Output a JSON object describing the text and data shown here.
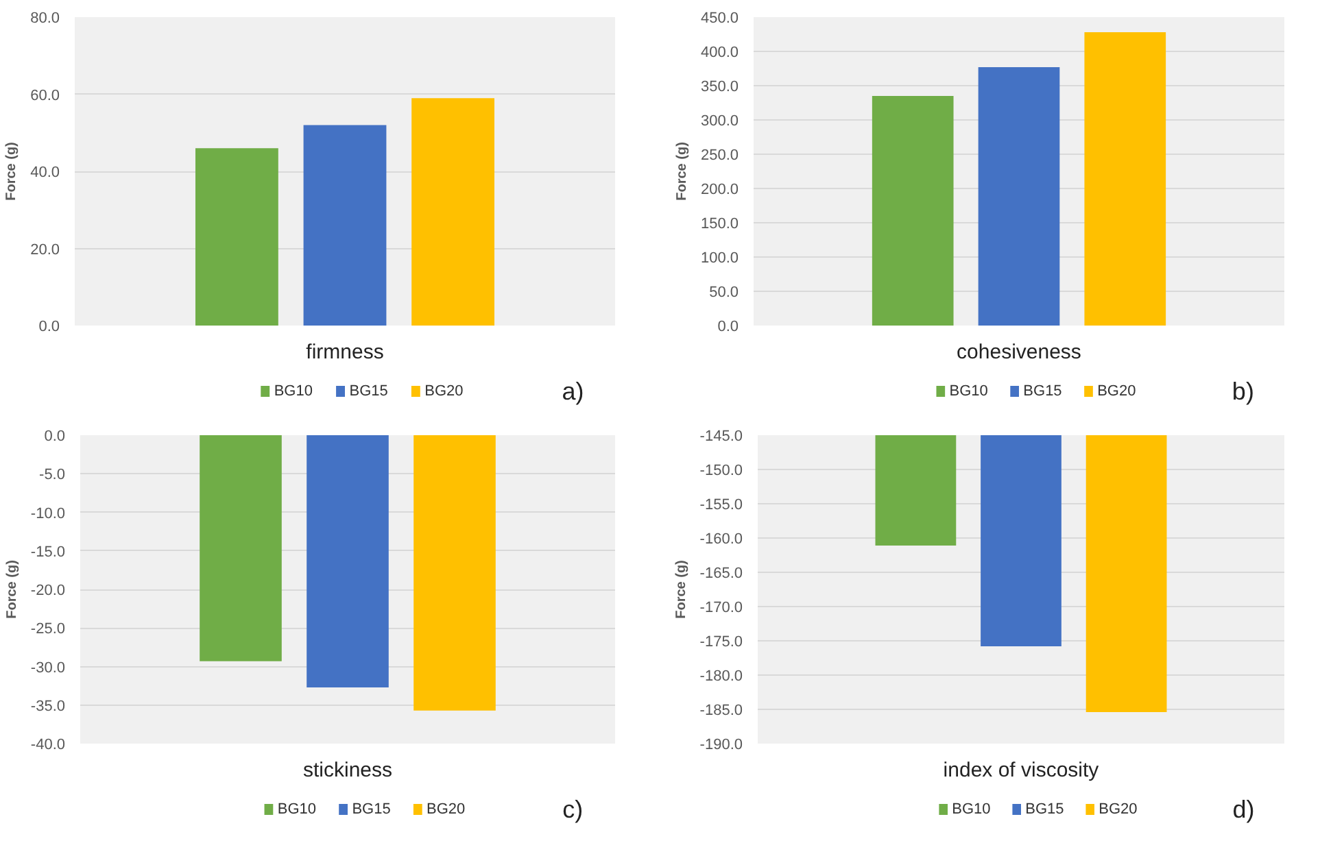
{
  "chart_data": [
    {
      "type": "bar",
      "categories": [
        "firmness"
      ],
      "ylabel": "Force (g)",
      "series": [
        {
          "name": "BG10",
          "color": "#70ad47",
          "values": [
            46
          ]
        },
        {
          "name": "BG15",
          "color": "#4472c4",
          "values": [
            52
          ]
        },
        {
          "name": "BG20",
          "color": "#ffc000",
          "values": [
            59
          ]
        }
      ],
      "ylim": [
        0,
        80
      ],
      "yticks": [
        {
          "value": 0,
          "label": "0.0"
        },
        {
          "value": 20,
          "label": "20.0"
        },
        {
          "value": 40,
          "label": "40.0"
        },
        {
          "value": 60,
          "label": "60.0"
        },
        {
          "value": 80,
          "label": "80.0"
        }
      ],
      "grid": "y",
      "legend": "bottom",
      "annotations": [
        "a)"
      ]
    },
    {
      "type": "bar",
      "categories": [
        "cohesiveness"
      ],
      "ylabel": "Force (g)",
      "series": [
        {
          "name": "BG10",
          "color": "#70ad47",
          "values": [
            335
          ]
        },
        {
          "name": "BG15",
          "color": "#4472c4",
          "values": [
            377
          ]
        },
        {
          "name": "BG20",
          "color": "#ffc000",
          "values": [
            428
          ]
        }
      ],
      "ylim": [
        0,
        450
      ],
      "yticks": [
        {
          "value": 0,
          "label": "0.0"
        },
        {
          "value": 50,
          "label": "50.0"
        },
        {
          "value": 100,
          "label": "100.0"
        },
        {
          "value": 150,
          "label": "150.0"
        },
        {
          "value": 200,
          "label": "200.0"
        },
        {
          "value": 250,
          "label": "250.0"
        },
        {
          "value": 300,
          "label": "300.0"
        },
        {
          "value": 350,
          "label": "350.0"
        },
        {
          "value": 400,
          "label": "400.0"
        },
        {
          "value": 450,
          "label": "450.0"
        }
      ],
      "grid": "y",
      "legend": "bottom",
      "annotations": [
        "b)"
      ]
    },
    {
      "type": "bar",
      "categories": [
        "stickiness"
      ],
      "ylabel": "Force (g)",
      "series": [
        {
          "name": "BG10",
          "color": "#70ad47",
          "values": [
            -29.3
          ]
        },
        {
          "name": "BG15",
          "color": "#4472c4",
          "values": [
            -32.7
          ]
        },
        {
          "name": "BG20",
          "color": "#ffc000",
          "values": [
            -35.7
          ]
        }
      ],
      "ylim": [
        -40,
        0
      ],
      "yticks": [
        {
          "value": 0,
          "label": "0.0"
        },
        {
          "value": -5,
          "label": "-5.0"
        },
        {
          "value": -10,
          "label": "-10.0"
        },
        {
          "value": -15,
          "label": "-15.0"
        },
        {
          "value": -20,
          "label": "-20.0"
        },
        {
          "value": -25,
          "label": "-25.0"
        },
        {
          "value": -30,
          "label": "-30.0"
        },
        {
          "value": -35,
          "label": "-35.0"
        },
        {
          "value": -40,
          "label": "-40.0"
        }
      ],
      "grid": "y",
      "legend": "bottom",
      "annotations": [
        "c)"
      ]
    },
    {
      "type": "bar",
      "categories": [
        "index of viscosity"
      ],
      "ylabel": "Force (g)",
      "series": [
        {
          "name": "BG10",
          "color": "#70ad47",
          "values": [
            -161.1
          ]
        },
        {
          "name": "BG15",
          "color": "#4472c4",
          "values": [
            -175.8
          ]
        },
        {
          "name": "BG20",
          "color": "#ffc000",
          "values": [
            -185.4
          ]
        }
      ],
      "ylim": [
        -190,
        -145
      ],
      "yticks": [
        {
          "value": -145,
          "label": "-145.0"
        },
        {
          "value": -150,
          "label": "-150.0"
        },
        {
          "value": -155,
          "label": "-155.0"
        },
        {
          "value": -160,
          "label": "-160.0"
        },
        {
          "value": -165,
          "label": "-165.0"
        },
        {
          "value": -170,
          "label": "-170.0"
        },
        {
          "value": -175,
          "label": "-175.0"
        },
        {
          "value": -180,
          "label": "-180.0"
        },
        {
          "value": -185,
          "label": "-185.0"
        },
        {
          "value": -190,
          "label": "-190.0"
        }
      ],
      "grid": "y",
      "legend": "bottom",
      "annotations": [
        "d)"
      ]
    }
  ]
}
